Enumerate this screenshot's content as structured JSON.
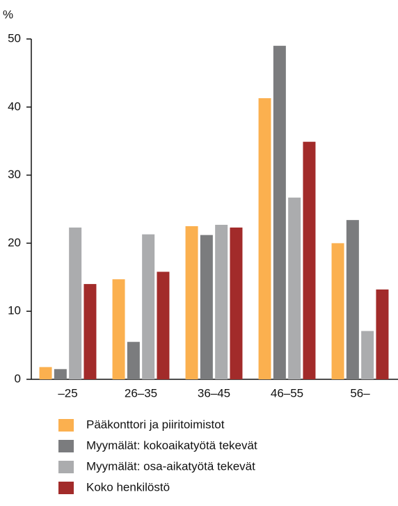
{
  "chart_data": {
    "type": "bar",
    "y_label": "%",
    "categories": [
      "–25",
      "26–35",
      "36–45",
      "46–55",
      "56–"
    ],
    "series": [
      {
        "name": "Pääkonttori ja piiritoimistot",
        "color": "#fbb04f",
        "values": [
          1.8,
          14.7,
          22.5,
          41.3,
          20.0
        ]
      },
      {
        "name": "Myymälät: kokoaikatyötä tekevät",
        "color": "#7b7c7e",
        "values": [
          1.5,
          5.5,
          21.2,
          49.0,
          23.4
        ]
      },
      {
        "name": "Myymälät: osa-aikatyötä tekevät",
        "color": "#abacae",
        "values": [
          22.3,
          21.3,
          22.7,
          26.7,
          7.1
        ]
      },
      {
        "name": "Koko henkilöstö",
        "color": "#a22b2a",
        "values": [
          14.0,
          15.8,
          22.3,
          34.9,
          13.2
        ]
      }
    ],
    "ylim": [
      0,
      50
    ],
    "yticks": [
      0,
      10,
      20,
      30,
      40,
      50
    ],
    "grid": false
  }
}
